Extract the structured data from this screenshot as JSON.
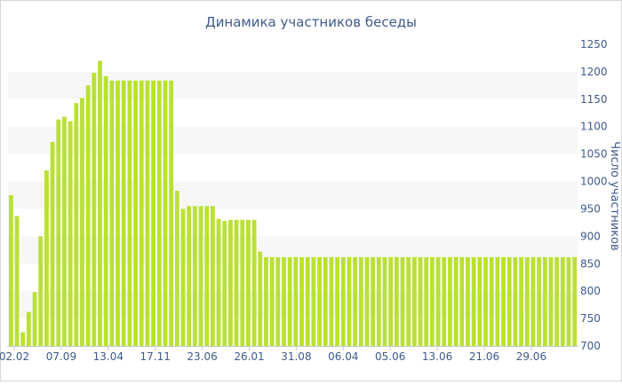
{
  "chart_data": {
    "type": "bar",
    "title": "Динамика участников беседы",
    "ylabel": "Число участников",
    "xlabel": "",
    "ylim": [
      700,
      1250
    ],
    "yticks": [
      700,
      750,
      800,
      850,
      900,
      950,
      1000,
      1050,
      1100,
      1150,
      1200,
      1250
    ],
    "x_tick_labels": [
      "02.02",
      "07.09",
      "13.04",
      "17.11",
      "23.06",
      "26.01",
      "31.08",
      "06.04",
      "05.06",
      "13.06",
      "21.06",
      "29.06"
    ],
    "legend": "none",
    "grid": "alternating horizontal bands",
    "bar_color": "#b9e133",
    "values": [
      975,
      937,
      725,
      762,
      798,
      900,
      1020,
      1072,
      1113,
      1118,
      1110,
      1143,
      1152,
      1175,
      1198,
      1220,
      1192,
      1184,
      1184,
      1184,
      1184,
      1184,
      1184,
      1184,
      1184,
      1184,
      1184,
      1184,
      983,
      950,
      955,
      955,
      955,
      955,
      955,
      932,
      928,
      930,
      930,
      930,
      930,
      930,
      872,
      862,
      862,
      862,
      862,
      862,
      862,
      862,
      862,
      862,
      862,
      862,
      862,
      862,
      862,
      862,
      862,
      862,
      862,
      862,
      862,
      862,
      862,
      862,
      862,
      862,
      862,
      862,
      862,
      862,
      862,
      862,
      862,
      862,
      862,
      862,
      862,
      862,
      862,
      862,
      862,
      862,
      862,
      862,
      862,
      862,
      862,
      862,
      862,
      862,
      862,
      862,
      862,
      862
    ]
  }
}
